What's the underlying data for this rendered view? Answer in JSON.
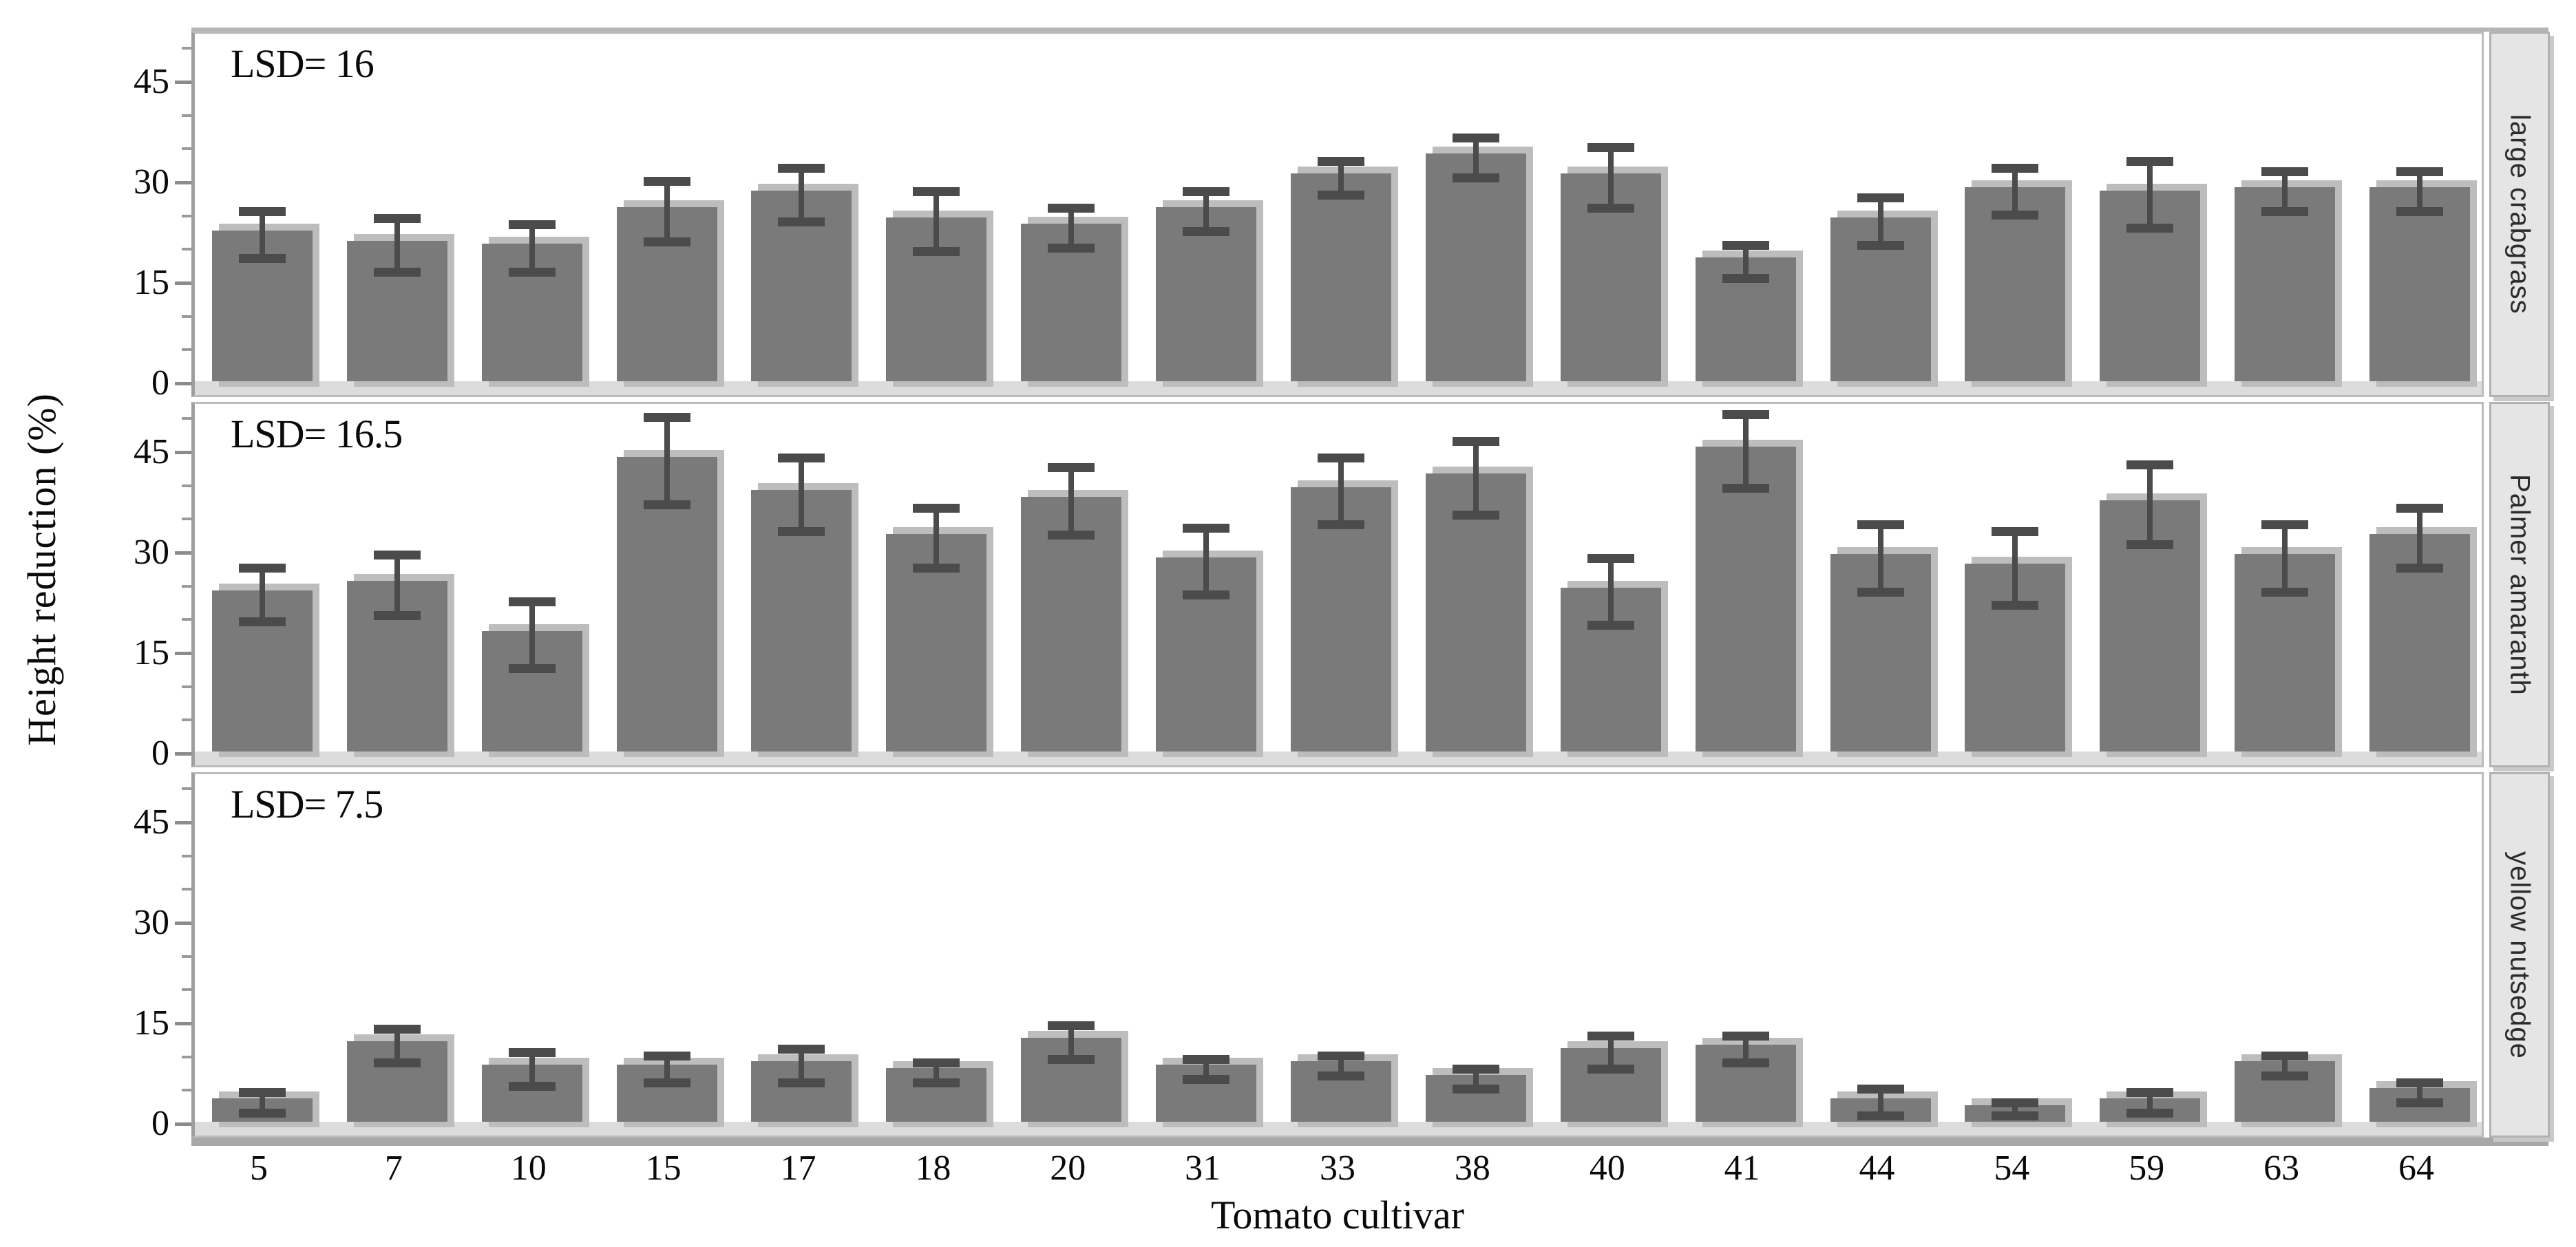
{
  "chart_data": {
    "type": "bar",
    "title": "",
    "x_axis_label": "Tomato cultivar",
    "y_axis_label": "Height reduction (%)",
    "categories": [
      "5",
      "7",
      "10",
      "15",
      "17",
      "18",
      "20",
      "31",
      "33",
      "38",
      "40",
      "41",
      "44",
      "54",
      "59",
      "63",
      "64"
    ],
    "y_ticks": [
      0,
      15,
      30,
      45
    ],
    "y_minor_ticks": [
      5,
      10,
      20,
      25,
      35,
      40,
      50
    ],
    "ylim": [
      0,
      52.5
    ],
    "grid": false,
    "legend_position": "none",
    "facets": [
      {
        "strip_label": "large crabgrass",
        "lsd_annotation": "LSD= 16",
        "lsd_value": 16,
        "values": [
          22.5,
          21,
          20.5,
          26,
          28.5,
          24.5,
          23.5,
          26,
          31,
          34,
          31,
          18.5,
          24.5,
          29,
          28.5,
          29,
          29
        ],
        "errors": [
          3.5,
          4,
          3.5,
          4.5,
          4,
          4.5,
          3,
          3,
          2.5,
          3,
          4.5,
          2.5,
          3.5,
          3.5,
          5,
          3,
          3
        ]
      },
      {
        "strip_label": "Palmer amaranth",
        "lsd_annotation": "LSD= 16.5",
        "lsd_value": 16.5,
        "values": [
          24,
          25.5,
          18,
          44,
          39,
          32.5,
          38,
          29,
          39.5,
          41.5,
          24.5,
          45.5,
          29.5,
          28,
          37.5,
          29.5,
          32.5
        ],
        "errors": [
          4,
          4.5,
          5,
          6.5,
          5.5,
          4.5,
          5,
          5,
          5,
          5.5,
          5,
          5.5,
          5,
          5.5,
          6,
          5,
          4.5
        ]
      },
      {
        "strip_label": "yellow nutsedge",
        "lsd_annotation": "LSD= 7.5",
        "lsd_value": 7.5,
        "values": [
          3.5,
          12,
          8.5,
          8.5,
          9,
          8,
          12.5,
          8.5,
          9,
          7,
          11,
          11.5,
          3.5,
          2.5,
          3.5,
          9,
          5
        ],
        "errors": [
          1.5,
          2.5,
          2.5,
          2,
          2.5,
          1.5,
          2.5,
          1.5,
          1.5,
          1.5,
          2.5,
          2,
          2,
          1,
          1.5,
          1.5,
          1.5
        ]
      }
    ],
    "colors": {
      "bar": "#7a7a7a",
      "bar_shadow": "#bdbdbd",
      "error_bar": "#4b4b4b",
      "floor_band": "#dcdcdc",
      "strip_background": "#e5e5e5",
      "strip_border": "#b2b2b2",
      "axis_line": "#9e9e9e",
      "text": "#0a0a0a"
    }
  }
}
